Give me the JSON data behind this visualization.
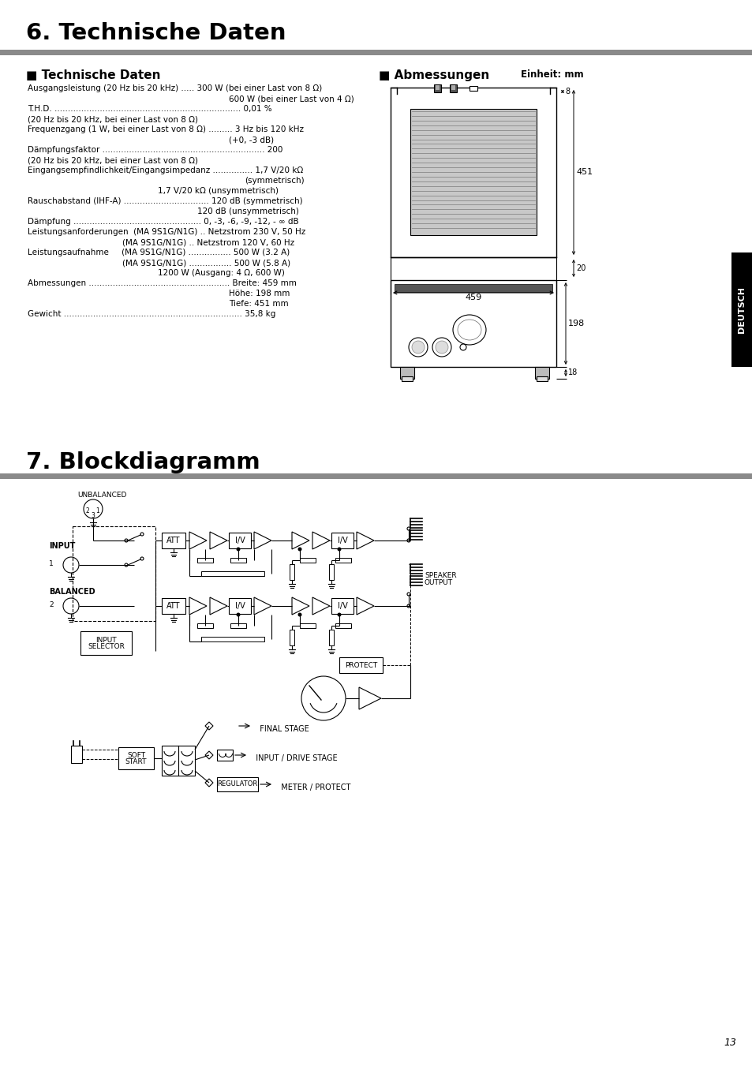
{
  "title1": "6. Technische Daten",
  "title2": "7. Blockdiagramm",
  "section1_heading": "■ Technische Daten",
  "section2_heading": "■ Abmessungen",
  "einheit": "Einheit: mm",
  "tech_lines": [
    [
      "Ausgangsleistung (20 Hz bis 20 kHz) ..... 300 W (bei einer Last von 8 Ω)",
      35
    ],
    [
      "600 W (bei einer Last von 4 Ω)",
      290
    ],
    [
      "T.H.D. ...................................................................... 0,01 %",
      35
    ],
    [
      "(20 Hz bis 20 kHz, bei einer Last von 8 Ω)",
      35
    ],
    [
      "Frequenzgang (1 W, bei einer Last von 8 Ω) ......... 3 Hz bis 120 kHz",
      35
    ],
    [
      "(+0, -3 dB)",
      290
    ],
    [
      "Dämpfungsfaktor ............................................................. 200",
      35
    ],
    [
      "(20 Hz bis 20 kHz, bei einer Last von 8 Ω)",
      35
    ],
    [
      "Eingangsempfindlichkeit/Eingangsimpedanz ............... 1,7 V/20 kΩ",
      35
    ],
    [
      "(symmetrisch)",
      310
    ],
    [
      "1,7 V/20 kΩ (unsymmetrisch)",
      200
    ],
    [
      "Rauschabstand (IHF-A) ................................ 120 dB (symmetrisch)",
      35
    ],
    [
      "120 dB (unsymmetrisch)",
      250
    ],
    [
      "Dämpfung ................................................ 0, -3, -6, -9, -12, - ∞ dB",
      35
    ],
    [
      "Leistungsanforderungen  (MA 9S1G/N1G) .. Netzstrom 230 V, 50 Hz",
      35
    ],
    [
      "(MA 9S1G/N1G) .. Netzstrom 120 V, 60 Hz",
      155
    ],
    [
      "Leistungsaufnahme     (MA 9S1G/N1G) ................ 500 W (3.2 A)",
      35
    ],
    [
      "(MA 9S1G/N1G) ................ 500 W (5.8 A)",
      155
    ],
    [
      "1200 W (Ausgang: 4 Ω, 600 W)",
      200
    ],
    [
      "Abmessungen ..................................................... Breite: 459 mm",
      35
    ],
    [
      "Höhe: 198 mm",
      290
    ],
    [
      "Tiefe: 451 mm",
      290
    ],
    [
      "Gewicht ................................................................... 35,8 kg",
      35
    ]
  ],
  "deutsch_label": "DEUTSCH",
  "page_number": "13",
  "bg_color": "#ffffff"
}
